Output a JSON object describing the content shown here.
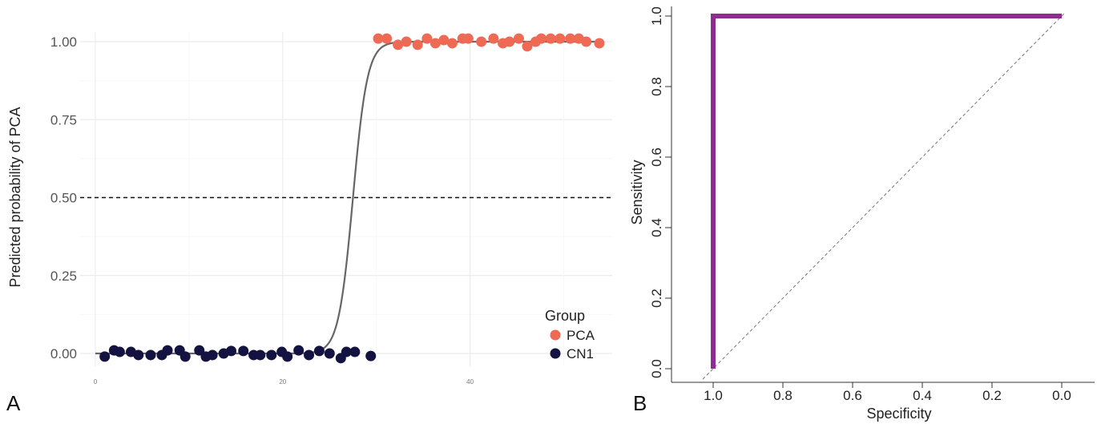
{
  "chart_data": [
    {
      "type": "scatter",
      "panel_label": "A",
      "ylabel": "Predicted probability of PCA",
      "xlabel": "",
      "xlim": [
        0,
        55
      ],
      "ylim": [
        -0.07,
        1.07
      ],
      "x_ticks": [
        0,
        20,
        40
      ],
      "x_tick_labels": [
        "0",
        "20",
        "40"
      ],
      "y_ticks": [
        0,
        0.25,
        0.5,
        0.75,
        1.0
      ],
      "y_tick_labels": [
        "0.00",
        "0.25",
        "0.50",
        "0.75",
        "1.00"
      ],
      "grid": true,
      "threshold_line": 0.5,
      "curve": {
        "type": "logistic",
        "midpoint": 27.5,
        "slope": 1.3
      },
      "legend": {
        "title": "Group",
        "position": "bottom-right"
      },
      "series": [
        {
          "name": "PCA",
          "color": "#EE6A55",
          "x": [
            30.2,
            31.1,
            32.3,
            33.2,
            34.4,
            35.4,
            36.3,
            37.2,
            38.1,
            39.2,
            39.8,
            41.2,
            42.5,
            43.5,
            44.2,
            45.2,
            46.1,
            47.0,
            47.6,
            48.6,
            49.6,
            50.7,
            51.6,
            52.4,
            53.8
          ],
          "y": [
            1.01,
            1.01,
            0.99,
            1.0,
            0.99,
            1.01,
            0.995,
            1.005,
            0.995,
            1.01,
            1.01,
            1.0,
            1.01,
            0.995,
            1.0,
            1.01,
            0.985,
            1.0,
            1.01,
            1.01,
            1.01,
            1.01,
            1.01,
            1.0,
            0.995
          ]
        },
        {
          "name": "CN1",
          "color": "#141240",
          "x": [
            1.0,
            2.0,
            2.6,
            3.8,
            4.6,
            5.9,
            7.1,
            7.7,
            9.0,
            9.6,
            11.1,
            11.8,
            12.5,
            13.7,
            14.5,
            15.8,
            16.9,
            17.6,
            18.8,
            19.9,
            20.5,
            21.7,
            22.8,
            23.9,
            25.0,
            26.2,
            26.8,
            27.7,
            29.4
          ],
          "y": [
            -0.01,
            0.01,
            0.005,
            0.005,
            -0.005,
            -0.005,
            -0.005,
            0.01,
            0.01,
            -0.01,
            0.01,
            -0.01,
            -0.005,
            0.0,
            0.008,
            0.008,
            -0.005,
            -0.005,
            -0.005,
            0.005,
            -0.01,
            0.01,
            -0.005,
            0.008,
            0.0,
            -0.015,
            0.005,
            0.005,
            -0.008
          ]
        }
      ]
    },
    {
      "type": "line",
      "panel_label": "B",
      "xlabel": "Specificity",
      "ylabel": "Sensitivity",
      "xlim": [
        1.1,
        -0.1
      ],
      "ylim": [
        -0.05,
        1.05
      ],
      "x_reversed": true,
      "x_ticks": [
        1.0,
        0.8,
        0.6,
        0.4,
        0.2,
        0.0
      ],
      "x_tick_labels": [
        "1.0",
        "0.8",
        "0.6",
        "0.4",
        "0.2",
        "0.0"
      ],
      "y_ticks": [
        0.0,
        0.2,
        0.4,
        0.6,
        0.8,
        1.0
      ],
      "y_tick_labels": [
        "0.0",
        "0.2",
        "0.4",
        "0.6",
        "0.8",
        "1.0"
      ],
      "grid": false,
      "reference_line": true,
      "series": [
        {
          "name": "",
          "color": "#8E2D8F",
          "x": [
            1.0,
            1.0,
            0.0
          ],
          "y": [
            0.0,
            1.0,
            1.0
          ]
        }
      ]
    }
  ]
}
